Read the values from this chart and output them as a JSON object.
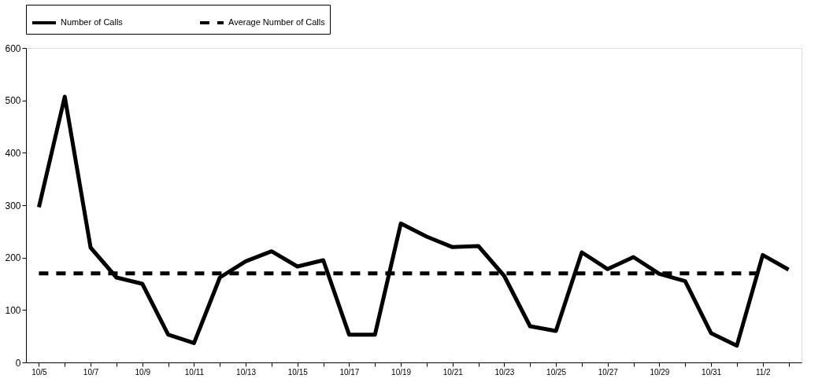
{
  "chart_data": {
    "type": "line",
    "categories": [
      "10/5",
      null,
      "10/7",
      null,
      "10/9",
      null,
      "10/11",
      null,
      "10/13",
      null,
      "10/15",
      null,
      "10/17",
      null,
      "10/19",
      null,
      "10/21",
      null,
      "10/23",
      null,
      "10/25",
      null,
      "10/27",
      null,
      "10/29",
      null,
      "10/31",
      null,
      "11/2",
      null
    ],
    "series": [
      {
        "name": "Number of Calls",
        "color": "#000000",
        "line_style": "solid",
        "values": [
          296,
          507,
          219,
          162,
          150,
          53,
          37,
          162,
          193,
          212,
          183,
          195,
          53,
          53,
          265,
          240,
          220,
          222,
          165,
          69,
          60,
          210,
          178,
          201,
          169,
          155,
          56,
          32,
          205,
          177
        ]
      },
      {
        "name": "Average Number of Calls",
        "color": "#000000",
        "line_style": "dashed",
        "values": [
          170,
          170,
          170,
          170,
          170,
          170,
          170,
          170,
          170,
          170,
          170,
          170,
          170,
          170,
          170,
          170,
          170,
          170,
          170,
          170,
          170,
          170,
          170,
          170,
          170,
          170,
          170,
          170,
          170,
          null
        ]
      }
    ],
    "ylim": [
      0,
      600
    ],
    "yticks": [
      0,
      100,
      200,
      300,
      400,
      500,
      600
    ],
    "grid": false,
    "legend": "top",
    "marker": "none"
  }
}
